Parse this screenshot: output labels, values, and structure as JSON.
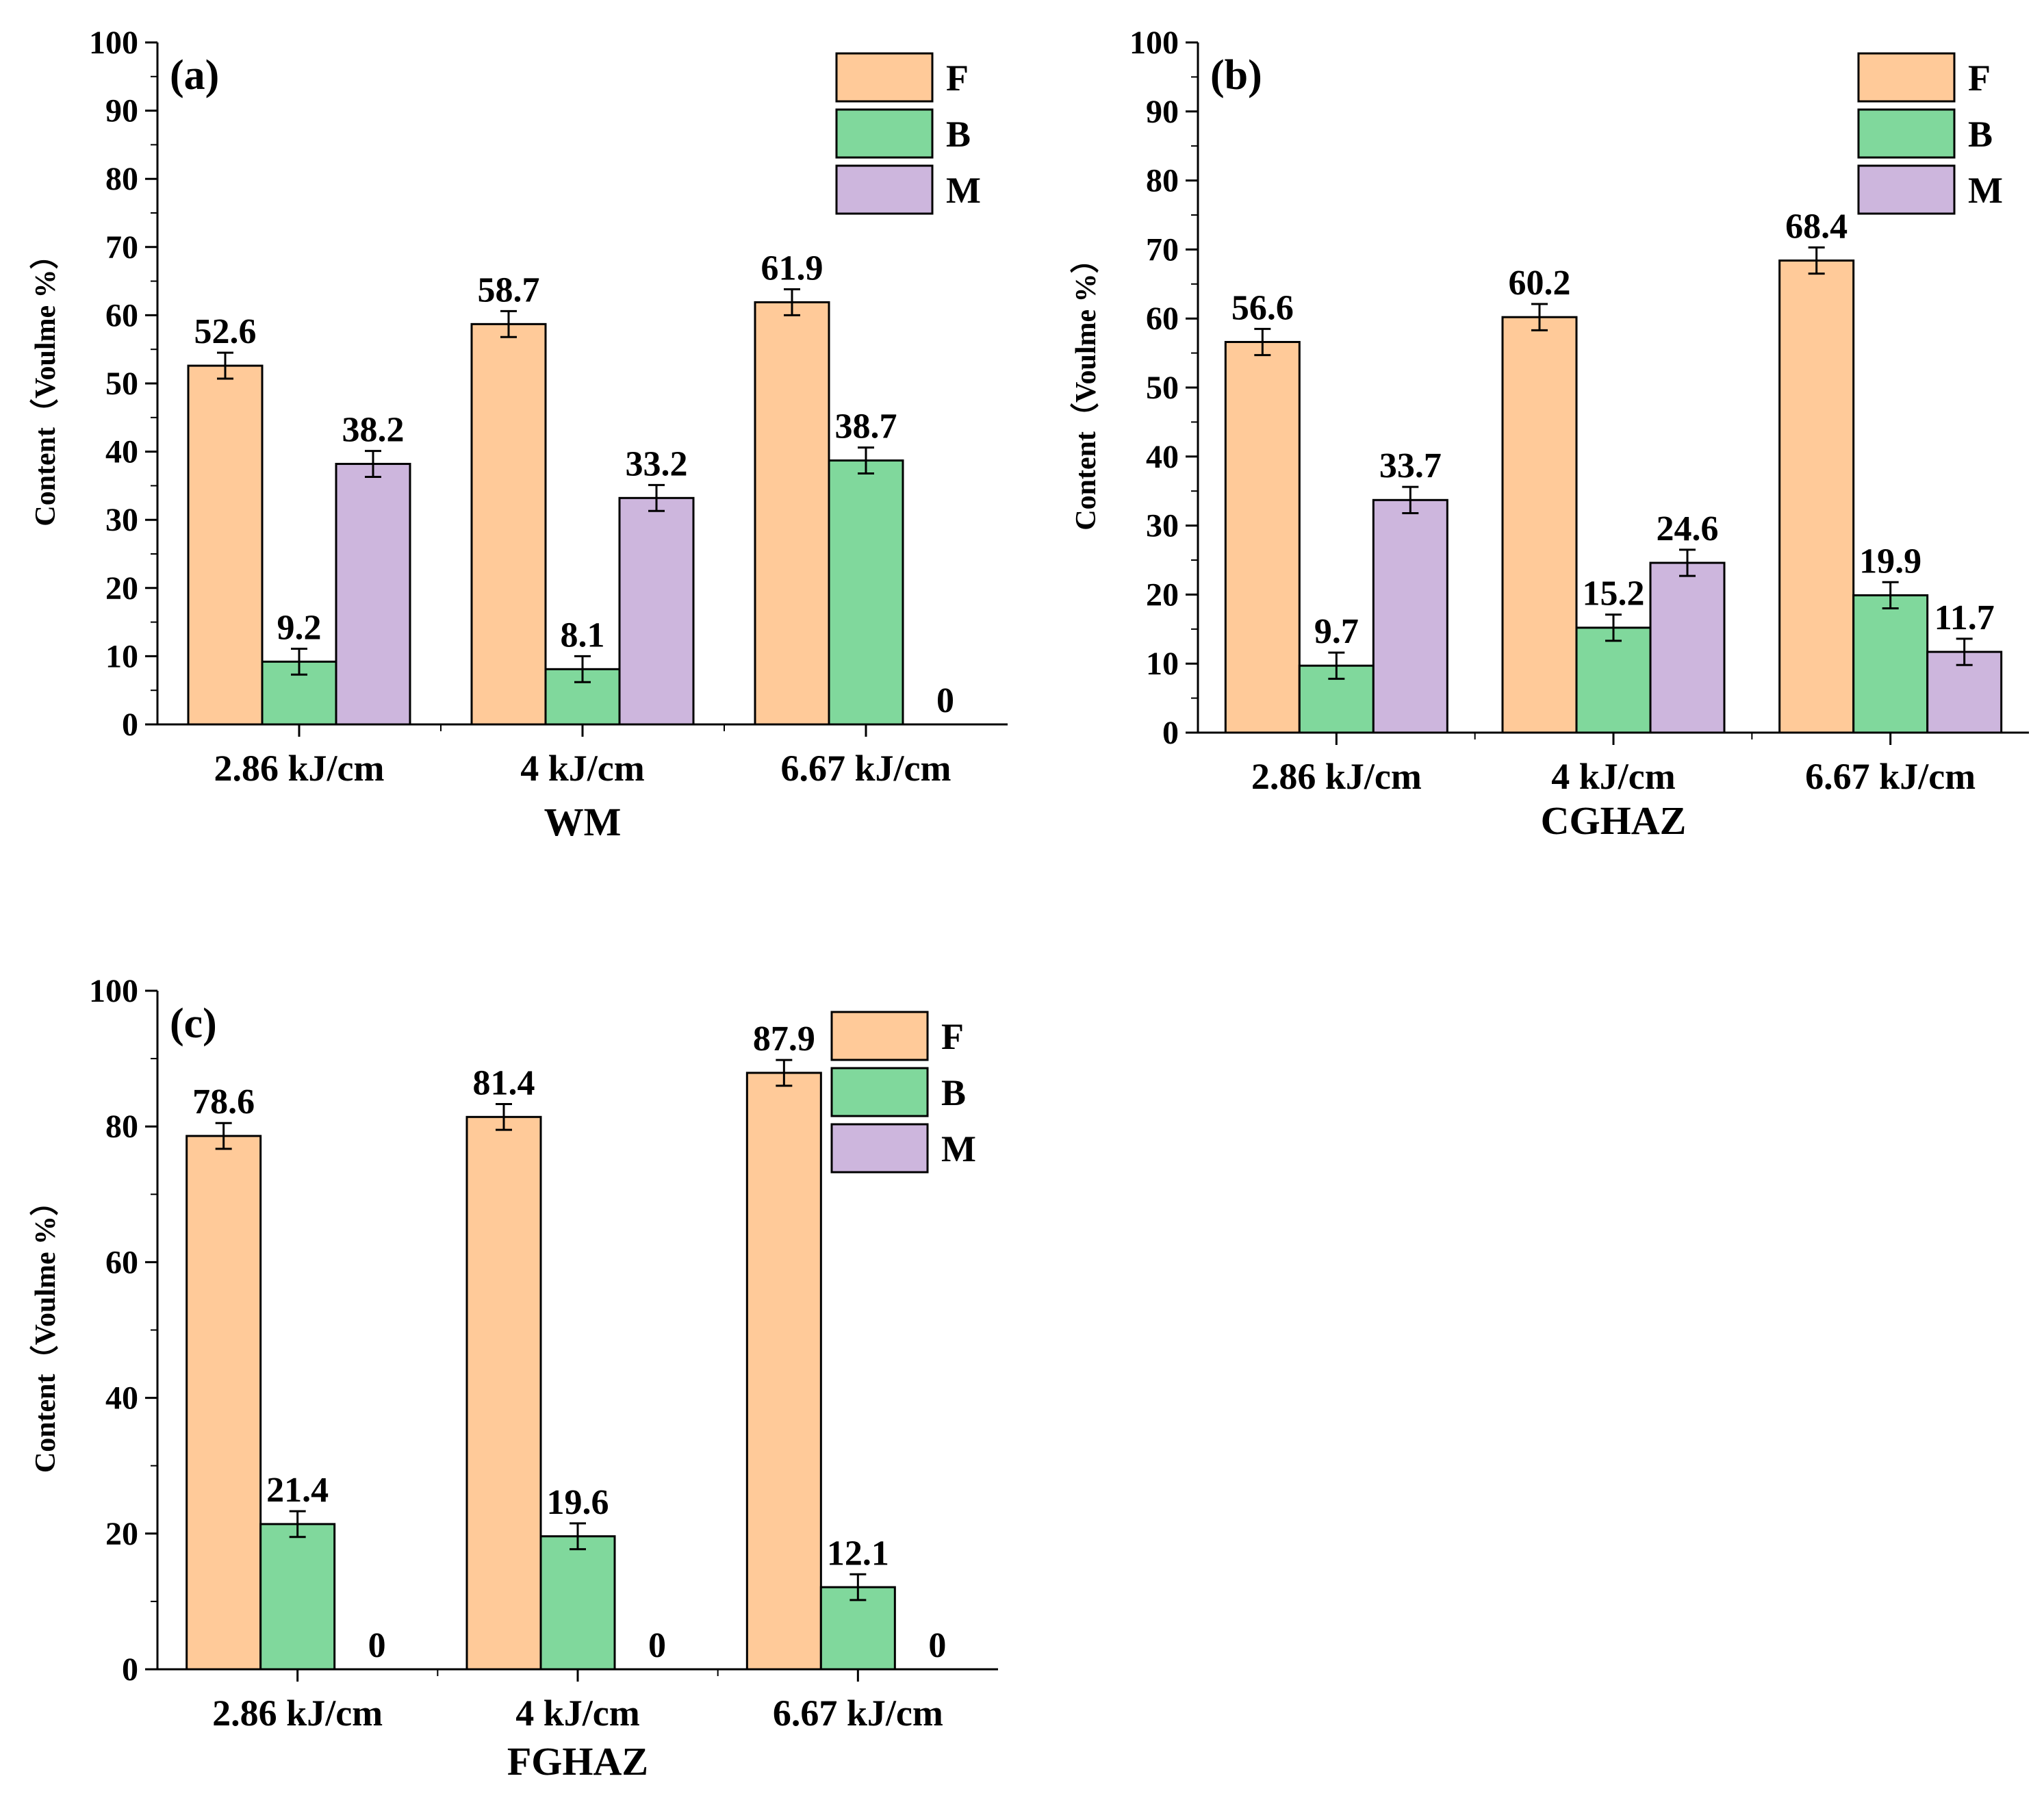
{
  "chart_data": [
    {
      "type": "bar",
      "panel_tag": "(a)",
      "title": "WM",
      "ylabel": "Content（Voulme %）",
      "ylim": [
        0,
        100
      ],
      "yticks": [
        0,
        10,
        20,
        30,
        40,
        50,
        60,
        70,
        80,
        90,
        100
      ],
      "categories": [
        "2.86 kJ/cm",
        "4 kJ/cm",
        "6.67 kJ/cm"
      ],
      "series": [
        {
          "name": "F",
          "color": "#FFCA99",
          "values": [
            52.6,
            58.7,
            61.9
          ],
          "labels": [
            "52.6",
            "58.7",
            "61.9"
          ]
        },
        {
          "name": "B",
          "color": "#80D89C",
          "values": [
            9.2,
            8.1,
            38.7
          ],
          "labels": [
            "9.2",
            "8.1",
            "38.7"
          ]
        },
        {
          "name": "M",
          "color": "#CDB6DD",
          "values": [
            38.2,
            33.2,
            0
          ],
          "labels": [
            "38.2",
            "33.2",
            "0"
          ]
        }
      ],
      "legend": "top-right"
    },
    {
      "type": "bar",
      "panel_tag": "(b)",
      "title": "CGHAZ",
      "ylabel": "Content（Voulme %）",
      "ylim": [
        0,
        100
      ],
      "yticks": [
        0,
        10,
        20,
        30,
        40,
        50,
        60,
        70,
        80,
        90,
        100
      ],
      "categories": [
        "2.86 kJ/cm",
        "4 kJ/cm",
        "6.67 kJ/cm"
      ],
      "series": [
        {
          "name": "F",
          "color": "#FFCA99",
          "values": [
            56.6,
            60.2,
            68.4
          ],
          "labels": [
            "56.6",
            "60.2",
            "68.4"
          ]
        },
        {
          "name": "B",
          "color": "#80D89C",
          "values": [
            9.7,
            15.2,
            19.9
          ],
          "labels": [
            "9.7",
            "15.2",
            "19.9"
          ]
        },
        {
          "name": "M",
          "color": "#CDB6DD",
          "values": [
            33.7,
            24.6,
            11.7
          ],
          "labels": [
            "33.7",
            "24.6",
            "11.7"
          ]
        }
      ],
      "legend": "top-right"
    },
    {
      "type": "bar",
      "panel_tag": "(c)",
      "title": "FGHAZ",
      "ylabel": "Content（Voulme %）",
      "ylim": [
        0,
        100
      ],
      "yticks": [
        0,
        20,
        40,
        60,
        80,
        100
      ],
      "categories": [
        "2.86 kJ/cm",
        "4 kJ/cm",
        "6.67 kJ/cm"
      ],
      "series": [
        {
          "name": "F",
          "color": "#FFCA99",
          "values": [
            78.6,
            81.4,
            87.9
          ],
          "labels": [
            "78.6",
            "81.4",
            "87.9"
          ]
        },
        {
          "name": "B",
          "color": "#80D89C",
          "values": [
            21.4,
            19.6,
            12.1
          ],
          "labels": [
            "21.4",
            "19.6",
            "12.1"
          ]
        },
        {
          "name": "M",
          "color": "#CDB6DD",
          "values": [
            0,
            0,
            0
          ],
          "labels": [
            "0",
            "0",
            "0"
          ]
        }
      ],
      "legend": "top-right"
    }
  ]
}
